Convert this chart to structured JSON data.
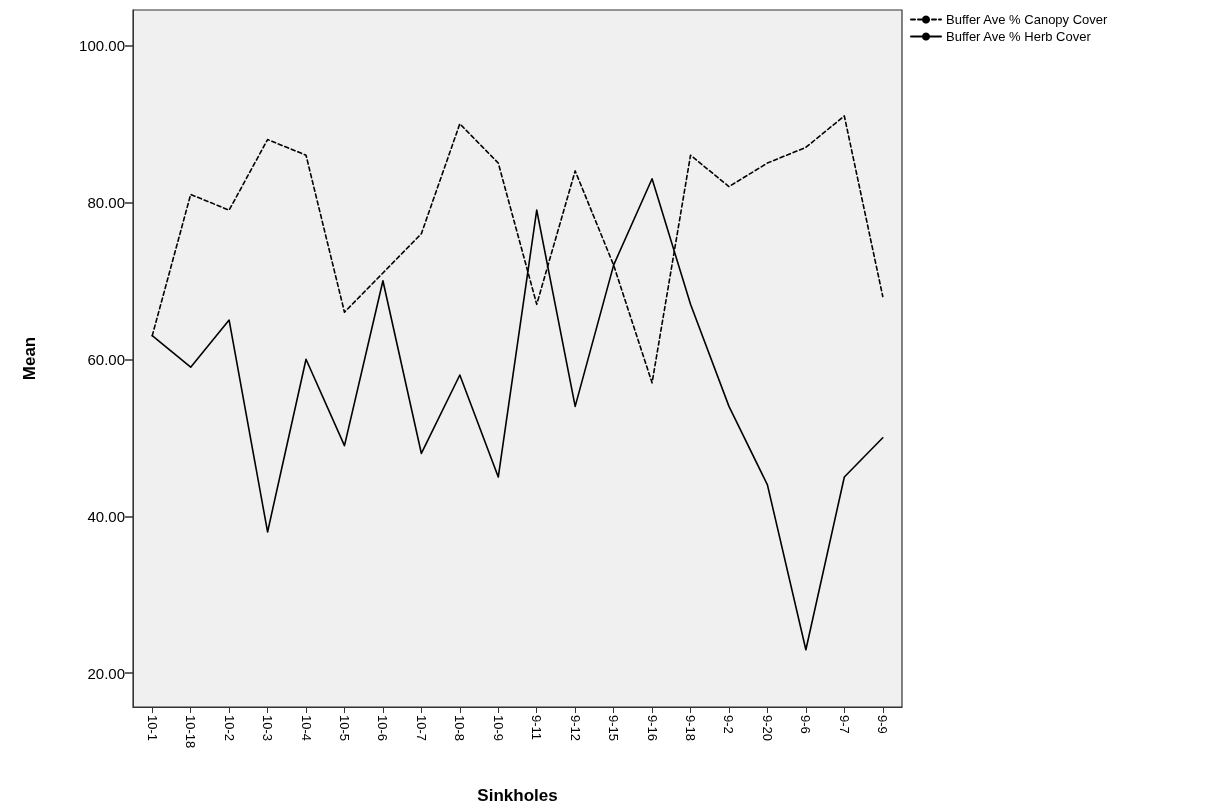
{
  "chart_data": {
    "type": "line",
    "xlabel": "Sinkholes",
    "ylabel": "Mean",
    "categories": [
      "10-1",
      "10-18",
      "10-2",
      "10-3",
      "10-4",
      "10-5",
      "10-6",
      "10-7",
      "10-8",
      "10-9",
      "9-11",
      "9-12",
      "9-15",
      "9-16",
      "9-18",
      "9-2",
      "9-20",
      "9-6",
      "9-7",
      "9-9"
    ],
    "series": [
      {
        "name": "Buffer Ave % Canopy Cover",
        "color": "#000000",
        "line_style": "dashed",
        "values": [
          63,
          81,
          79,
          88,
          86,
          66,
          71,
          76,
          90,
          85,
          67,
          84,
          72,
          57,
          86,
          82,
          85,
          87,
          91,
          68
        ]
      },
      {
        "name": "Buffer Ave % Herb Cover",
        "color": "#000000",
        "line_style": "solid",
        "values": [
          63,
          59,
          65,
          38,
          60,
          49,
          70,
          48,
          58,
          45,
          79,
          54,
          72,
          83,
          67,
          54,
          44,
          23,
          45,
          50
        ]
      }
    ],
    "ylim": [
      15.7,
      104.5
    ],
    "yticks": [
      {
        "value": 20,
        "label": "20.00"
      },
      {
        "value": 40,
        "label": "40.00"
      },
      {
        "value": 60,
        "label": "60.00"
      },
      {
        "value": 80,
        "label": "80.00"
      },
      {
        "value": 100,
        "label": "100.00"
      }
    ],
    "grid": false,
    "legend": "top right",
    "marker": "none"
  }
}
